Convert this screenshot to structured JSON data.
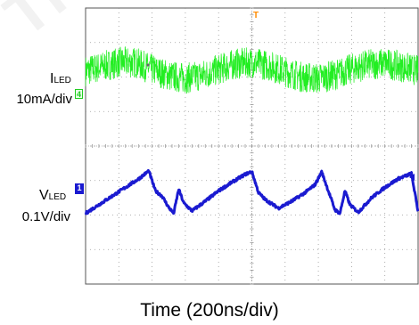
{
  "labels": {
    "ch4_main": "I",
    "ch4_sub": "LED",
    "ch4_scale": "10mA/div",
    "ch1_main": "V",
    "ch1_sub": "LED",
    "ch1_scale": "0.1V/div",
    "x_title": "Time (200ns/div)"
  },
  "markers": {
    "ch4_badge": "4",
    "ch1_badge": "1",
    "trigger_badge": "T"
  },
  "colors": {
    "background": "#ffffff",
    "grid": "#9a9a9a",
    "frame": "#555555",
    "ch4_trace": "#22ee22",
    "ch1_trace": "#1a1ad0",
    "trigger": "#ff8a00"
  },
  "chart_data": {
    "type": "line",
    "title": "",
    "xlabel": "Time (200ns/div)",
    "ylabel": "",
    "grid": true,
    "x_divisions": 10,
    "y_divisions": 8,
    "xlim": [
      0,
      2000
    ],
    "x_unit": "ns",
    "series": [
      {
        "name": "ILED",
        "scale": "10mA/div",
        "color": "#22ee22",
        "noise_band_div": 0.9,
        "x": [
          0,
          100,
          200,
          300,
          400,
          500,
          600,
          700,
          800,
          900,
          1000,
          1100,
          1200,
          1300,
          1400,
          1500,
          1600,
          1700,
          1800,
          1900,
          2000
        ],
        "y_div": [
          2.18,
          2.3,
          2.43,
          2.42,
          2.22,
          2.04,
          1.96,
          2.05,
          2.22,
          2.38,
          2.42,
          2.34,
          2.16,
          2.0,
          1.96,
          2.06,
          2.24,
          2.36,
          2.4,
          2.3,
          2.18
        ]
      },
      {
        "name": "VLED",
        "scale": "0.1V/div",
        "color": "#1a1ad0",
        "x": [
          0,
          80,
          160,
          240,
          320,
          380,
          420,
          460,
          500,
          530,
          560,
          590,
          640,
          720,
          800,
          880,
          960,
          1000,
          1040,
          1080,
          1160,
          1240,
          1320,
          1380,
          1420,
          1460,
          1500,
          1530,
          1560,
          1590,
          1640,
          1720,
          1800,
          1880,
          1960,
          2000
        ],
        "y_div": [
          -1.95,
          -1.7,
          -1.45,
          -1.2,
          -0.95,
          -0.72,
          -1.3,
          -1.45,
          -1.78,
          -1.95,
          -1.25,
          -1.65,
          -1.88,
          -1.6,
          -1.3,
          -1.05,
          -0.82,
          -0.74,
          -1.35,
          -1.55,
          -1.8,
          -1.6,
          -1.35,
          -1.12,
          -0.75,
          -1.3,
          -1.85,
          -1.95,
          -1.3,
          -1.7,
          -1.92,
          -1.5,
          -1.2,
          -0.95,
          -0.8,
          -1.9
        ]
      }
    ]
  }
}
